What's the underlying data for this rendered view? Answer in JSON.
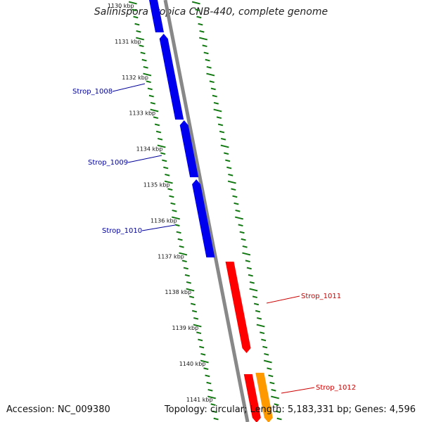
{
  "title": "Salinispora tropica CNB-440, complete genome",
  "accession_text": "Accession: NC_009380",
  "summary_text": "Topology: circular; Length: 5,183,331 bp; Genes: 4,596",
  "colors": {
    "forward_gene": "#0000ee",
    "reverse_gene": "#ff0000",
    "alt_gene": "#ff9900",
    "backbone": "#888888",
    "tick": "#117711",
    "forward_label": "#000099",
    "reverse_label": "#cc0000"
  },
  "scale_labels": [
    "1130 kbp",
    "1131 kbp",
    "1132 kbp",
    "1133 kbp",
    "1134 kbp",
    "1135 kbp",
    "1136 kbp",
    "1137 kbp",
    "1138 kbp",
    "1139 kbp",
    "1140 kbp",
    "1141 kbp"
  ],
  "gene_labels": {
    "forward": [
      "Strop_1008",
      "Strop_1009",
      "Strop_1010"
    ],
    "reverse": [
      "Strop_1011",
      "Strop_1012"
    ]
  }
}
